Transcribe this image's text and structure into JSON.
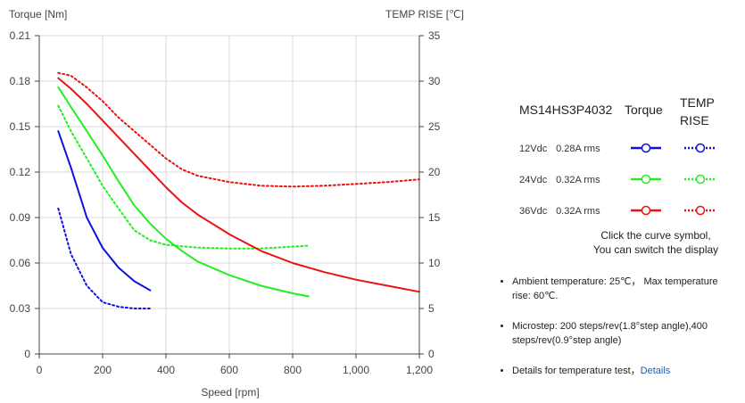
{
  "chart_data": {
    "type": "line",
    "xlabel": "Speed [rpm]",
    "ylabel_left": "Torque  [Nm]",
    "ylabel_right": "TEMP RISE [℃]",
    "xlim": [
      0,
      1200
    ],
    "ylim_left": [
      0,
      0.21
    ],
    "ylim_right": [
      0,
      35
    ],
    "x_ticks": [
      "0",
      "200",
      "400",
      "600",
      "800",
      "1,000",
      "1,200"
    ],
    "x_tick_values": [
      0,
      200,
      400,
      600,
      800,
      1000,
      1200
    ],
    "y_left_ticks": [
      "0",
      "0.03",
      "0.06",
      "0.09",
      "0.12",
      "0.15",
      "0.18",
      "0.21"
    ],
    "y_left_tick_values": [
      0,
      0.03,
      0.06,
      0.09,
      0.12,
      0.15,
      0.18,
      0.21
    ],
    "y_right_ticks": [
      "0",
      "5",
      "10",
      "15",
      "20",
      "25",
      "30",
      "35"
    ],
    "y_right_tick_values": [
      0,
      5,
      10,
      15,
      20,
      25,
      30,
      35
    ],
    "grid": true,
    "series": [
      {
        "name": "12Vdc 0.28A rms Torque",
        "axis": "left",
        "color": "#1010e0",
        "style": "solid",
        "x": [
          60,
          100,
          150,
          200,
          250,
          300,
          350
        ],
        "y": [
          0.147,
          0.123,
          0.09,
          0.07,
          0.057,
          0.048,
          0.042
        ]
      },
      {
        "name": "12Vdc 0.28A rms TEMP RISE",
        "axis": "right",
        "color": "#1010e0",
        "style": "dotted",
        "x": [
          60,
          100,
          150,
          200,
          250,
          300,
          350
        ],
        "y": [
          16.0,
          11.0,
          7.5,
          5.7,
          5.2,
          5.0,
          5.0
        ]
      },
      {
        "name": "24Vdc 0.32A rms Torque",
        "axis": "left",
        "color": "#22ee22",
        "style": "solid",
        "x": [
          60,
          100,
          150,
          200,
          250,
          300,
          350,
          400,
          450,
          500,
          600,
          700,
          800,
          850
        ],
        "y": [
          0.176,
          0.163,
          0.147,
          0.131,
          0.114,
          0.098,
          0.086,
          0.076,
          0.068,
          0.061,
          0.052,
          0.045,
          0.04,
          0.038
        ]
      },
      {
        "name": "24Vdc 0.32A rms TEMP RISE",
        "axis": "right",
        "color": "#22ee22",
        "style": "dotted",
        "x": [
          60,
          100,
          150,
          200,
          250,
          300,
          350,
          400,
          500,
          600,
          700,
          800,
          850
        ],
        "y": [
          27.3,
          24.5,
          21.5,
          18.5,
          16.0,
          13.6,
          12.5,
          12.0,
          11.7,
          11.6,
          11.6,
          11.8,
          11.9
        ]
      },
      {
        "name": "36Vdc 0.32A rms Torque",
        "axis": "left",
        "color": "#ee1111",
        "style": "solid",
        "x": [
          60,
          100,
          150,
          200,
          250,
          300,
          350,
          400,
          450,
          500,
          600,
          700,
          800,
          900,
          1000,
          1100,
          1200
        ],
        "y": [
          0.182,
          0.175,
          0.165,
          0.154,
          0.143,
          0.132,
          0.121,
          0.11,
          0.1,
          0.092,
          0.079,
          0.068,
          0.06,
          0.054,
          0.049,
          0.045,
          0.041
        ]
      },
      {
        "name": "36Vdc 0.32A rms TEMP RISE",
        "axis": "right",
        "color": "#ee1111",
        "style": "dotted",
        "x": [
          60,
          100,
          150,
          200,
          250,
          300,
          350,
          400,
          450,
          500,
          600,
          700,
          800,
          900,
          1000,
          1100,
          1200
        ],
        "y": [
          30.9,
          30.6,
          29.3,
          27.8,
          26.0,
          24.5,
          23.0,
          21.5,
          20.3,
          19.6,
          18.9,
          18.5,
          18.4,
          18.5,
          18.7,
          18.9,
          19.2
        ]
      }
    ]
  },
  "panel": {
    "model": "MS14HS3P4032",
    "torque_header": "Torque",
    "temp_header": "TEMP RISE",
    "rows": [
      {
        "voltage": "12Vdc",
        "current": "0.28A rms",
        "color": "#1010e0"
      },
      {
        "voltage": "24Vdc",
        "current": "0.32A rms",
        "color": "#22ee22"
      },
      {
        "voltage": "36Vdc",
        "current": "0.32A rms",
        "color": "#ee1111"
      }
    ],
    "note_line1": "Click the curve symbol,",
    "note_line2": "You can switch the display",
    "bullet1": "Ambient temperature: 25℃， Max temperature rise: 60℃.",
    "bullet2": "Microstep: 200 steps/rev(1.8°step angle),400 steps/rev(0.9°step angle)",
    "bullet3": "Details for temperature test，",
    "details_link": "Details"
  }
}
